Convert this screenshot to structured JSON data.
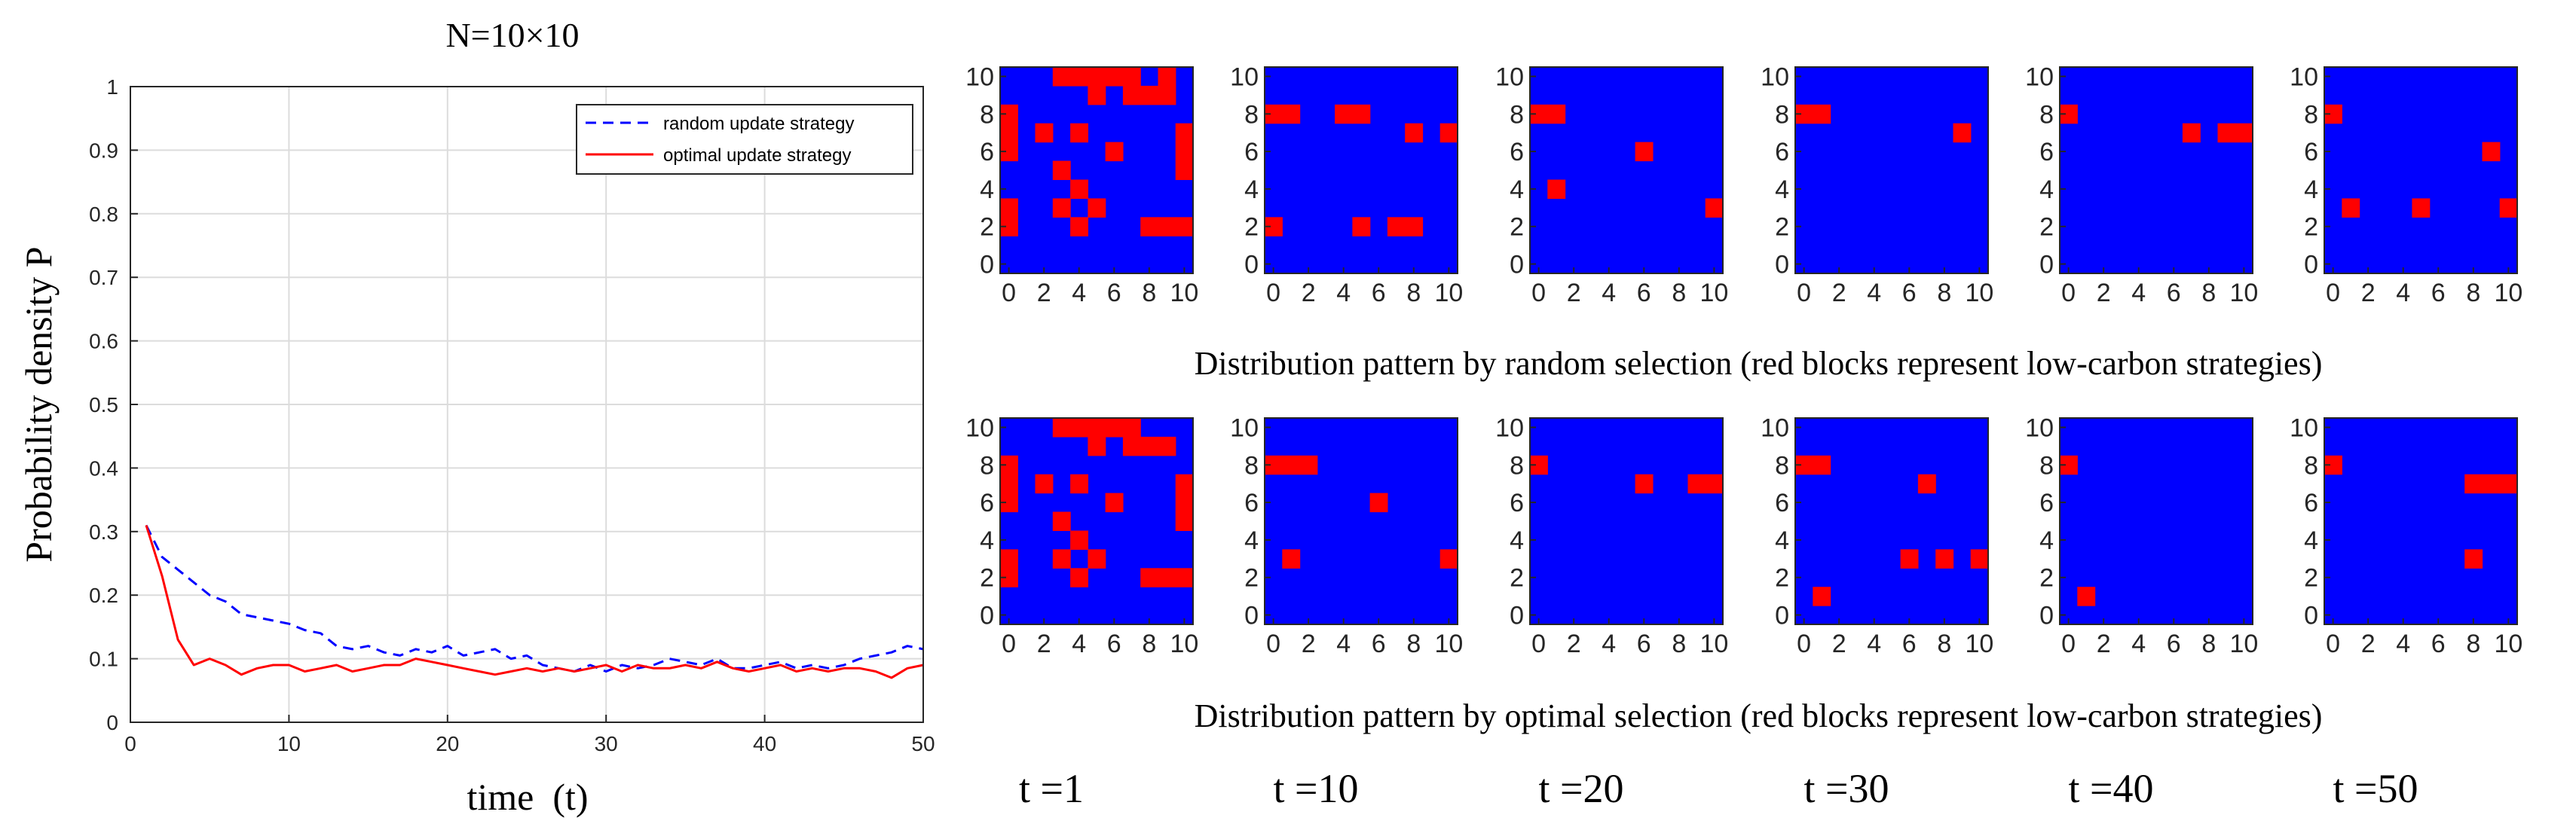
{
  "line_chart": {
    "title": "N=10×10",
    "xlabel": "time  (t)",
    "ylabel": "Probability density P",
    "xlim": [
      0,
      50
    ],
    "ylim": [
      0,
      1
    ],
    "xticks": [
      0,
      10,
      20,
      30,
      40,
      50
    ],
    "yticks": [
      0,
      0.1,
      0.2,
      0.3,
      0.4,
      0.5,
      0.6,
      0.7,
      0.8,
      0.9,
      1
    ],
    "ytick_labels": [
      "0",
      "0.1",
      "0.2",
      "0.3",
      "0.4",
      "0.5",
      "0.6",
      "0.7",
      "0.8",
      "0.9",
      "1"
    ],
    "grid": true,
    "legend_position": "top-right",
    "series": [
      {
        "name": "random update strategy",
        "color": "#0000ff",
        "dash": true,
        "x": [
          1,
          2,
          3,
          4,
          5,
          6,
          7,
          8,
          9,
          10,
          11,
          12,
          13,
          14,
          15,
          16,
          17,
          18,
          19,
          20,
          21,
          22,
          23,
          24,
          25,
          26,
          27,
          28,
          29,
          30,
          31,
          32,
          33,
          34,
          35,
          36,
          37,
          38,
          39,
          40,
          41,
          42,
          43,
          44,
          45,
          46,
          47,
          48,
          49,
          50
        ],
        "y": [
          0.31,
          0.26,
          0.24,
          0.22,
          0.2,
          0.19,
          0.17,
          0.165,
          0.16,
          0.155,
          0.145,
          0.14,
          0.12,
          0.115,
          0.12,
          0.11,
          0.105,
          0.115,
          0.11,
          0.12,
          0.105,
          0.11,
          0.115,
          0.1,
          0.105,
          0.09,
          0.085,
          0.08,
          0.09,
          0.08,
          0.09,
          0.085,
          0.09,
          0.1,
          0.095,
          0.09,
          0.1,
          0.085,
          0.085,
          0.09,
          0.095,
          0.085,
          0.09,
          0.085,
          0.09,
          0.1,
          0.105,
          0.11,
          0.12,
          0.115
        ]
      },
      {
        "name": "optimal update strategy",
        "color": "#ff0000",
        "dash": false,
        "x": [
          1,
          2,
          3,
          4,
          5,
          6,
          7,
          8,
          9,
          10,
          11,
          12,
          13,
          14,
          15,
          16,
          17,
          18,
          19,
          20,
          21,
          22,
          23,
          24,
          25,
          26,
          27,
          28,
          29,
          30,
          31,
          32,
          33,
          34,
          35,
          36,
          37,
          38,
          39,
          40,
          41,
          42,
          43,
          44,
          45,
          46,
          47,
          48,
          49,
          50
        ],
        "y": [
          0.31,
          0.23,
          0.13,
          0.09,
          0.1,
          0.09,
          0.075,
          0.085,
          0.09,
          0.09,
          0.08,
          0.085,
          0.09,
          0.08,
          0.085,
          0.09,
          0.09,
          0.1,
          0.095,
          0.09,
          0.085,
          0.08,
          0.075,
          0.08,
          0.085,
          0.08,
          0.085,
          0.08,
          0.085,
          0.09,
          0.08,
          0.09,
          0.085,
          0.085,
          0.09,
          0.085,
          0.095,
          0.085,
          0.08,
          0.085,
          0.09,
          0.08,
          0.085,
          0.08,
          0.085,
          0.085,
          0.08,
          0.07,
          0.085,
          0.09
        ]
      }
    ]
  },
  "grid_panels": {
    "axis_ticks": [
      0,
      2,
      4,
      6,
      8,
      10
    ],
    "axis_tick_labels": [
      "0",
      "2",
      "4",
      "6",
      "8",
      "10"
    ],
    "background_color": "#0000ff",
    "block_color": "#ff0000",
    "random_caption": "Distribution pattern by random selection (red blocks represent low-carbon strategies)",
    "optimal_caption": "Distribution pattern by optimal selection (red blocks represent low-carbon strategies)",
    "time_labels": [
      "t =1",
      "t =10",
      "t =20",
      "t =30",
      "t =40",
      "t =50"
    ],
    "random": [
      [
        [
          3,
          10
        ],
        [
          4,
          10
        ],
        [
          5,
          10
        ],
        [
          6,
          10
        ],
        [
          7,
          10
        ],
        [
          9,
          10
        ],
        [
          5,
          9
        ],
        [
          7,
          9
        ],
        [
          8,
          9
        ],
        [
          9,
          9
        ],
        [
          0,
          8
        ],
        [
          0,
          7
        ],
        [
          0,
          6
        ],
        [
          2,
          7
        ],
        [
          4,
          7
        ],
        [
          10,
          7
        ],
        [
          10,
          6
        ],
        [
          10,
          5
        ],
        [
          6,
          6
        ],
        [
          3,
          5
        ],
        [
          4,
          4
        ],
        [
          3,
          3
        ],
        [
          5,
          3
        ],
        [
          0,
          3
        ],
        [
          0,
          2
        ],
        [
          4,
          2
        ],
        [
          8,
          2
        ],
        [
          9,
          2
        ],
        [
          10,
          2
        ]
      ],
      [
        [
          0,
          8
        ],
        [
          1,
          8
        ],
        [
          4,
          8
        ],
        [
          5,
          8
        ],
        [
          8,
          7
        ],
        [
          10,
          7
        ],
        [
          0,
          2
        ],
        [
          5,
          2
        ],
        [
          7,
          2
        ],
        [
          8,
          2
        ]
      ],
      [
        [
          0,
          8
        ],
        [
          1,
          8
        ],
        [
          6,
          6
        ],
        [
          1,
          4
        ],
        [
          10,
          3
        ]
      ],
      [
        [
          0,
          8
        ],
        [
          1,
          8
        ],
        [
          9,
          7
        ]
      ],
      [
        [
          0,
          8
        ],
        [
          7,
          7
        ],
        [
          9,
          7
        ],
        [
          10,
          7
        ]
      ],
      [
        [
          0,
          8
        ],
        [
          9,
          6
        ],
        [
          1,
          3
        ],
        [
          5,
          3
        ],
        [
          10,
          3
        ]
      ]
    ],
    "optimal": [
      [
        [
          3,
          10
        ],
        [
          4,
          10
        ],
        [
          5,
          10
        ],
        [
          6,
          10
        ],
        [
          7,
          10
        ],
        [
          5,
          9
        ],
        [
          7,
          9
        ],
        [
          8,
          9
        ],
        [
          9,
          9
        ],
        [
          0,
          8
        ],
        [
          0,
          7
        ],
        [
          0,
          6
        ],
        [
          2,
          7
        ],
        [
          4,
          7
        ],
        [
          10,
          7
        ],
        [
          10,
          6
        ],
        [
          10,
          5
        ],
        [
          6,
          6
        ],
        [
          3,
          5
        ],
        [
          4,
          4
        ],
        [
          3,
          3
        ],
        [
          5,
          3
        ],
        [
          0,
          3
        ],
        [
          0,
          2
        ],
        [
          4,
          2
        ],
        [
          8,
          2
        ],
        [
          9,
          2
        ],
        [
          10,
          2
        ]
      ],
      [
        [
          0,
          8
        ],
        [
          1,
          8
        ],
        [
          2,
          8
        ],
        [
          6,
          6
        ],
        [
          1,
          3
        ],
        [
          10,
          3
        ]
      ],
      [
        [
          0,
          8
        ],
        [
          6,
          7
        ],
        [
          9,
          7
        ],
        [
          10,
          7
        ]
      ],
      [
        [
          0,
          8
        ],
        [
          1,
          8
        ],
        [
          7,
          7
        ],
        [
          6,
          3
        ],
        [
          8,
          3
        ],
        [
          10,
          3
        ],
        [
          1,
          1
        ]
      ],
      [
        [
          0,
          8
        ],
        [
          1,
          1
        ]
      ],
      [
        [
          0,
          8
        ],
        [
          8,
          7
        ],
        [
          9,
          7
        ],
        [
          10,
          7
        ],
        [
          8,
          3
        ]
      ]
    ]
  }
}
